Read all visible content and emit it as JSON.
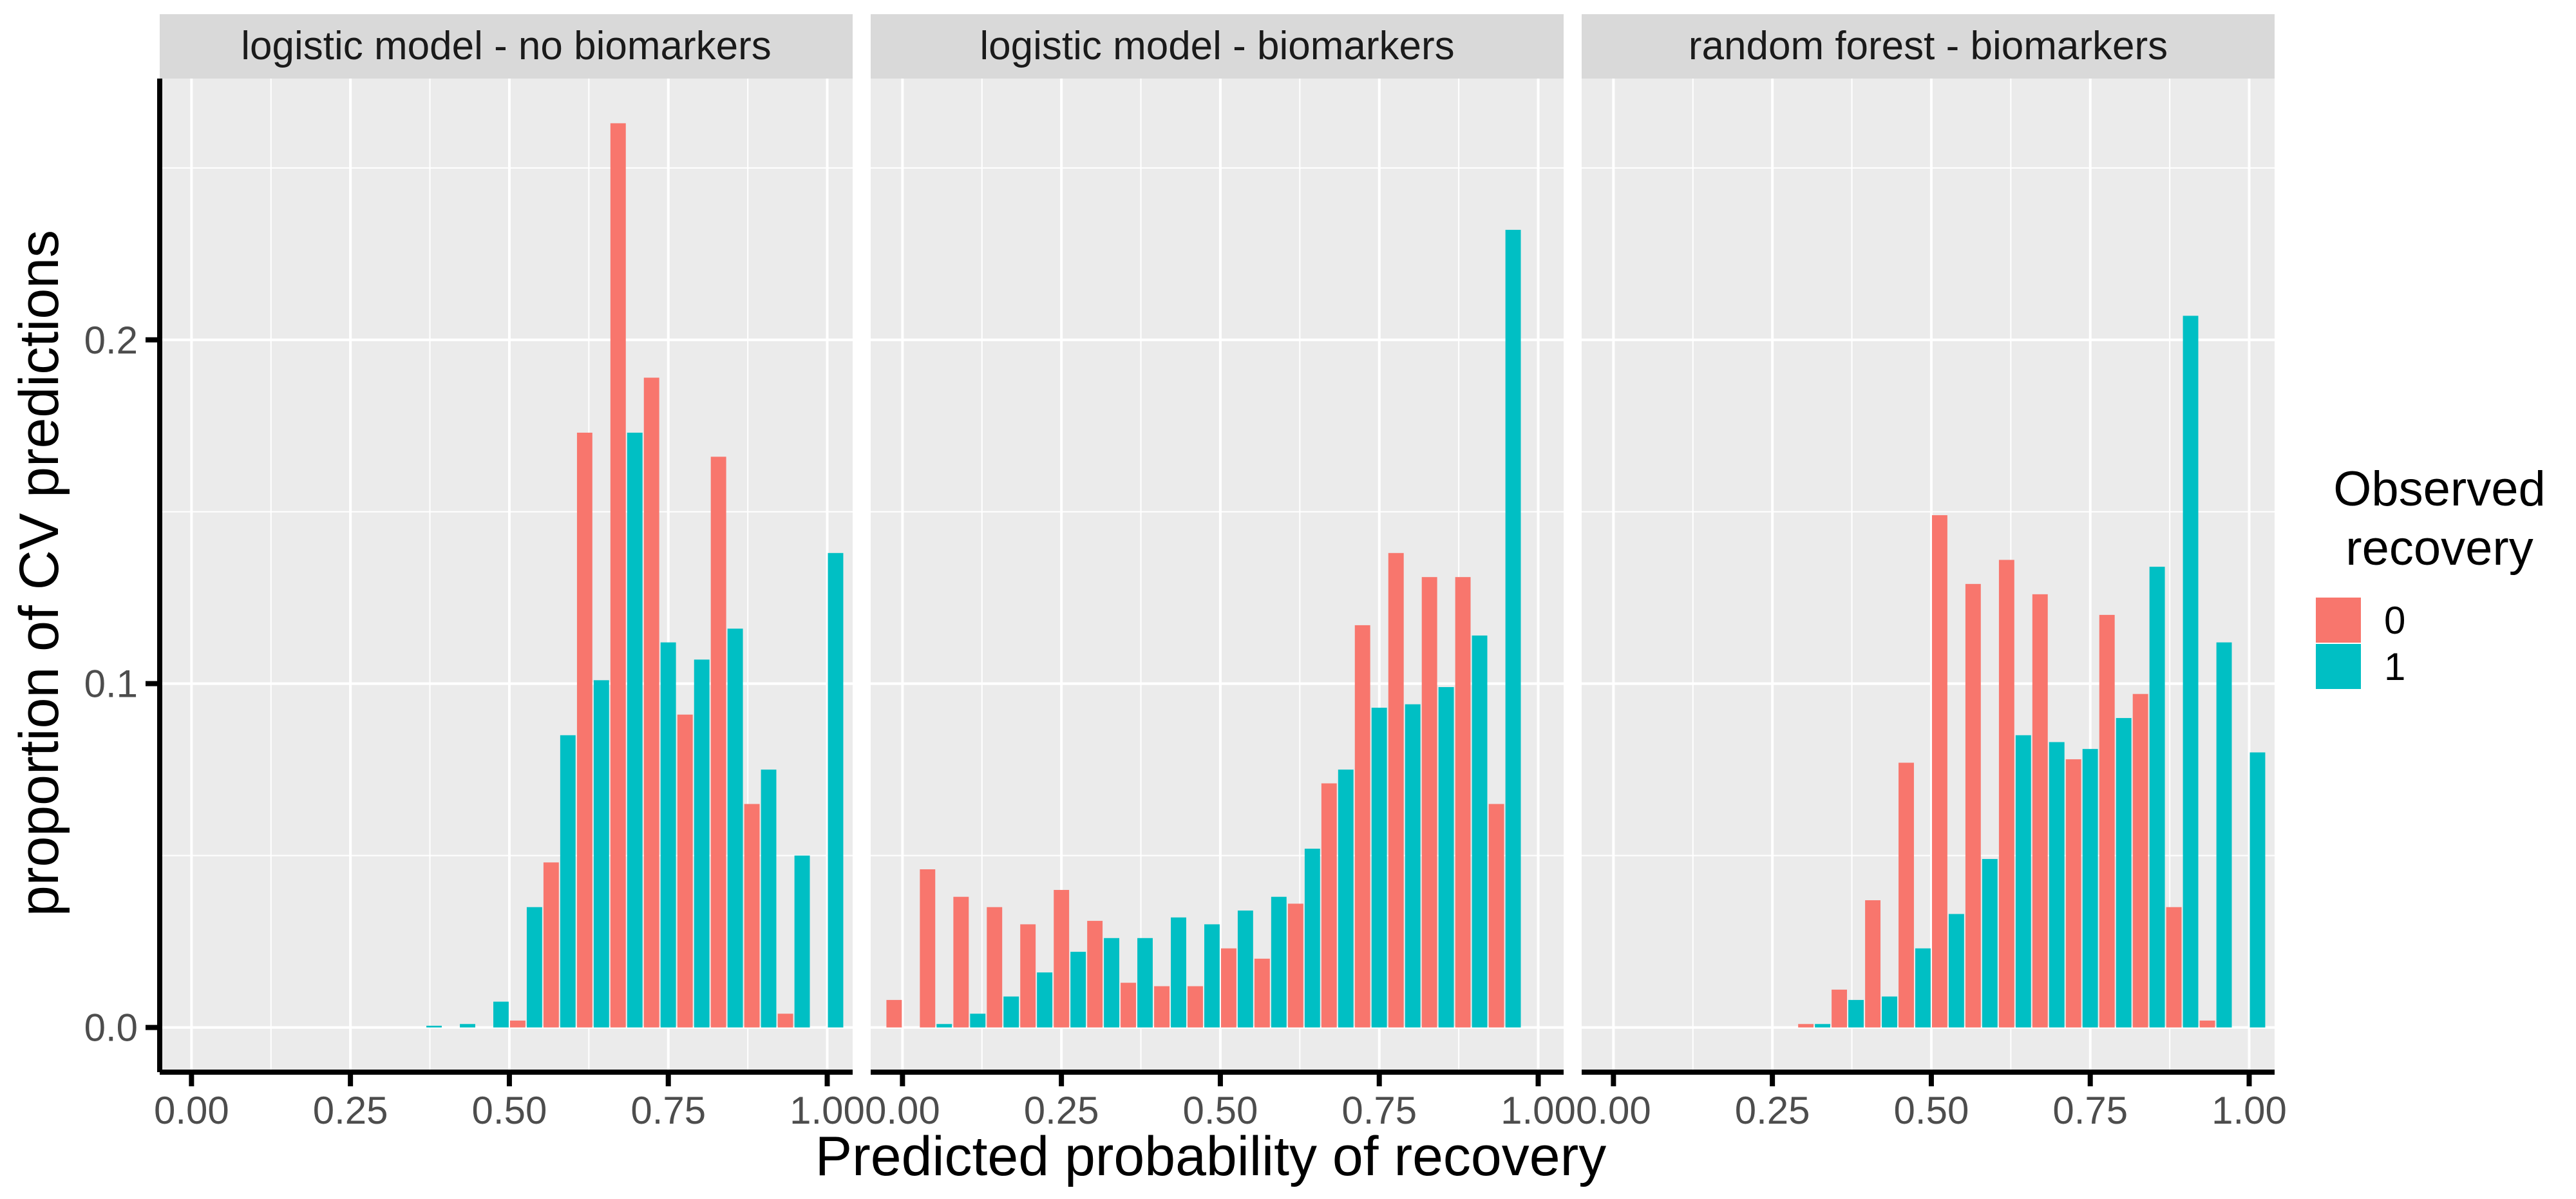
{
  "chart_data": {
    "type": "bar",
    "xlabel": "Predicted probability of recovery",
    "ylabel": "proportion of CV predictions",
    "xlim": [
      -0.05,
      1.04
    ],
    "ylim": [
      -0.013,
      0.276
    ],
    "x_ticks": [
      0,
      0.25,
      0.5,
      0.75,
      1
    ],
    "x_tick_labels": [
      "0.00",
      "0.25",
      "0.50",
      "0.75",
      "1.00"
    ],
    "y_ticks": [
      0,
      0.1,
      0.2
    ],
    "y_tick_labels": [
      "0.0",
      "0.1",
      "0.2"
    ],
    "y_minor_ticks": [
      0.05,
      0.15,
      0.25
    ],
    "x_minor_ticks": [
      0.125,
      0.375,
      0.625,
      0.875
    ],
    "bin_centers": [
      0.0,
      0.0526,
      0.1053,
      0.1579,
      0.2105,
      0.2632,
      0.3158,
      0.3684,
      0.4211,
      0.4737,
      0.5263,
      0.5789,
      0.6316,
      0.6842,
      0.7368,
      0.7895,
      0.8421,
      0.8947,
      0.9474,
      1.0
    ],
    "grid": true,
    "background": "#ebebeb",
    "strip_fill": "#d9d9d9",
    "legend": {
      "title": "Observed\nrecovery",
      "placement": "right",
      "entries": [
        {
          "label": "0",
          "color": "#f8766d"
        },
        {
          "label": "1",
          "color": "#00bfc4"
        }
      ]
    },
    "panels": [
      {
        "title": "logistic model - no biomarkers",
        "series": [
          {
            "name": "0",
            "color": "#f8766d",
            "values": [
              0,
              0,
              0,
              0,
              0,
              0,
              0,
              0,
              0,
              0,
              0.002,
              0.048,
              0.173,
              0.263,
              0.189,
              0.091,
              0.166,
              0.065,
              0.004,
              0
            ]
          },
          {
            "name": "1",
            "color": "#00bfc4",
            "values": [
              0,
              0,
              0,
              0,
              0,
              0,
              0,
              0.0005,
              0.001,
              0.0075,
              0.035,
              0.085,
              0.101,
              0.173,
              0.112,
              0.107,
              0.116,
              0.075,
              0.05,
              0.138
            ]
          }
        ]
      },
      {
        "title": "logistic model - biomarkers",
        "series": [
          {
            "name": "0",
            "color": "#f8766d",
            "values": [
              0.008,
              0.046,
              0.038,
              0.035,
              0.03,
              0.04,
              0.031,
              0.013,
              0.012,
              0.012,
              0.023,
              0.02,
              0.036,
              0.071,
              0.117,
              0.138,
              0.131,
              0.131,
              0.065,
              0
            ]
          },
          {
            "name": "1",
            "color": "#00bfc4",
            "values": [
              0,
              0.001,
              0.004,
              0.009,
              0.016,
              0.022,
              0.026,
              0.026,
              0.032,
              0.03,
              0.034,
              0.038,
              0.052,
              0.075,
              0.093,
              0.094,
              0.099,
              0.114,
              0.232,
              0
            ]
          }
        ]
      },
      {
        "title": "random forest - biomarkers",
        "series": [
          {
            "name": "0",
            "color": "#f8766d",
            "values": [
              0,
              0,
              0,
              0,
              0,
              0,
              0.001,
              0.011,
              0.037,
              0.077,
              0.149,
              0.129,
              0.136,
              0.126,
              0.078,
              0.12,
              0.097,
              0.035,
              0.002,
              0
            ]
          },
          {
            "name": "1",
            "color": "#00bfc4",
            "values": [
              0,
              0,
              0,
              0,
              0,
              0,
              0.001,
              0.008,
              0.009,
              0.023,
              0.033,
              0.049,
              0.085,
              0.083,
              0.081,
              0.09,
              0.134,
              0.207,
              0.112,
              0.08
            ]
          }
        ]
      }
    ]
  }
}
